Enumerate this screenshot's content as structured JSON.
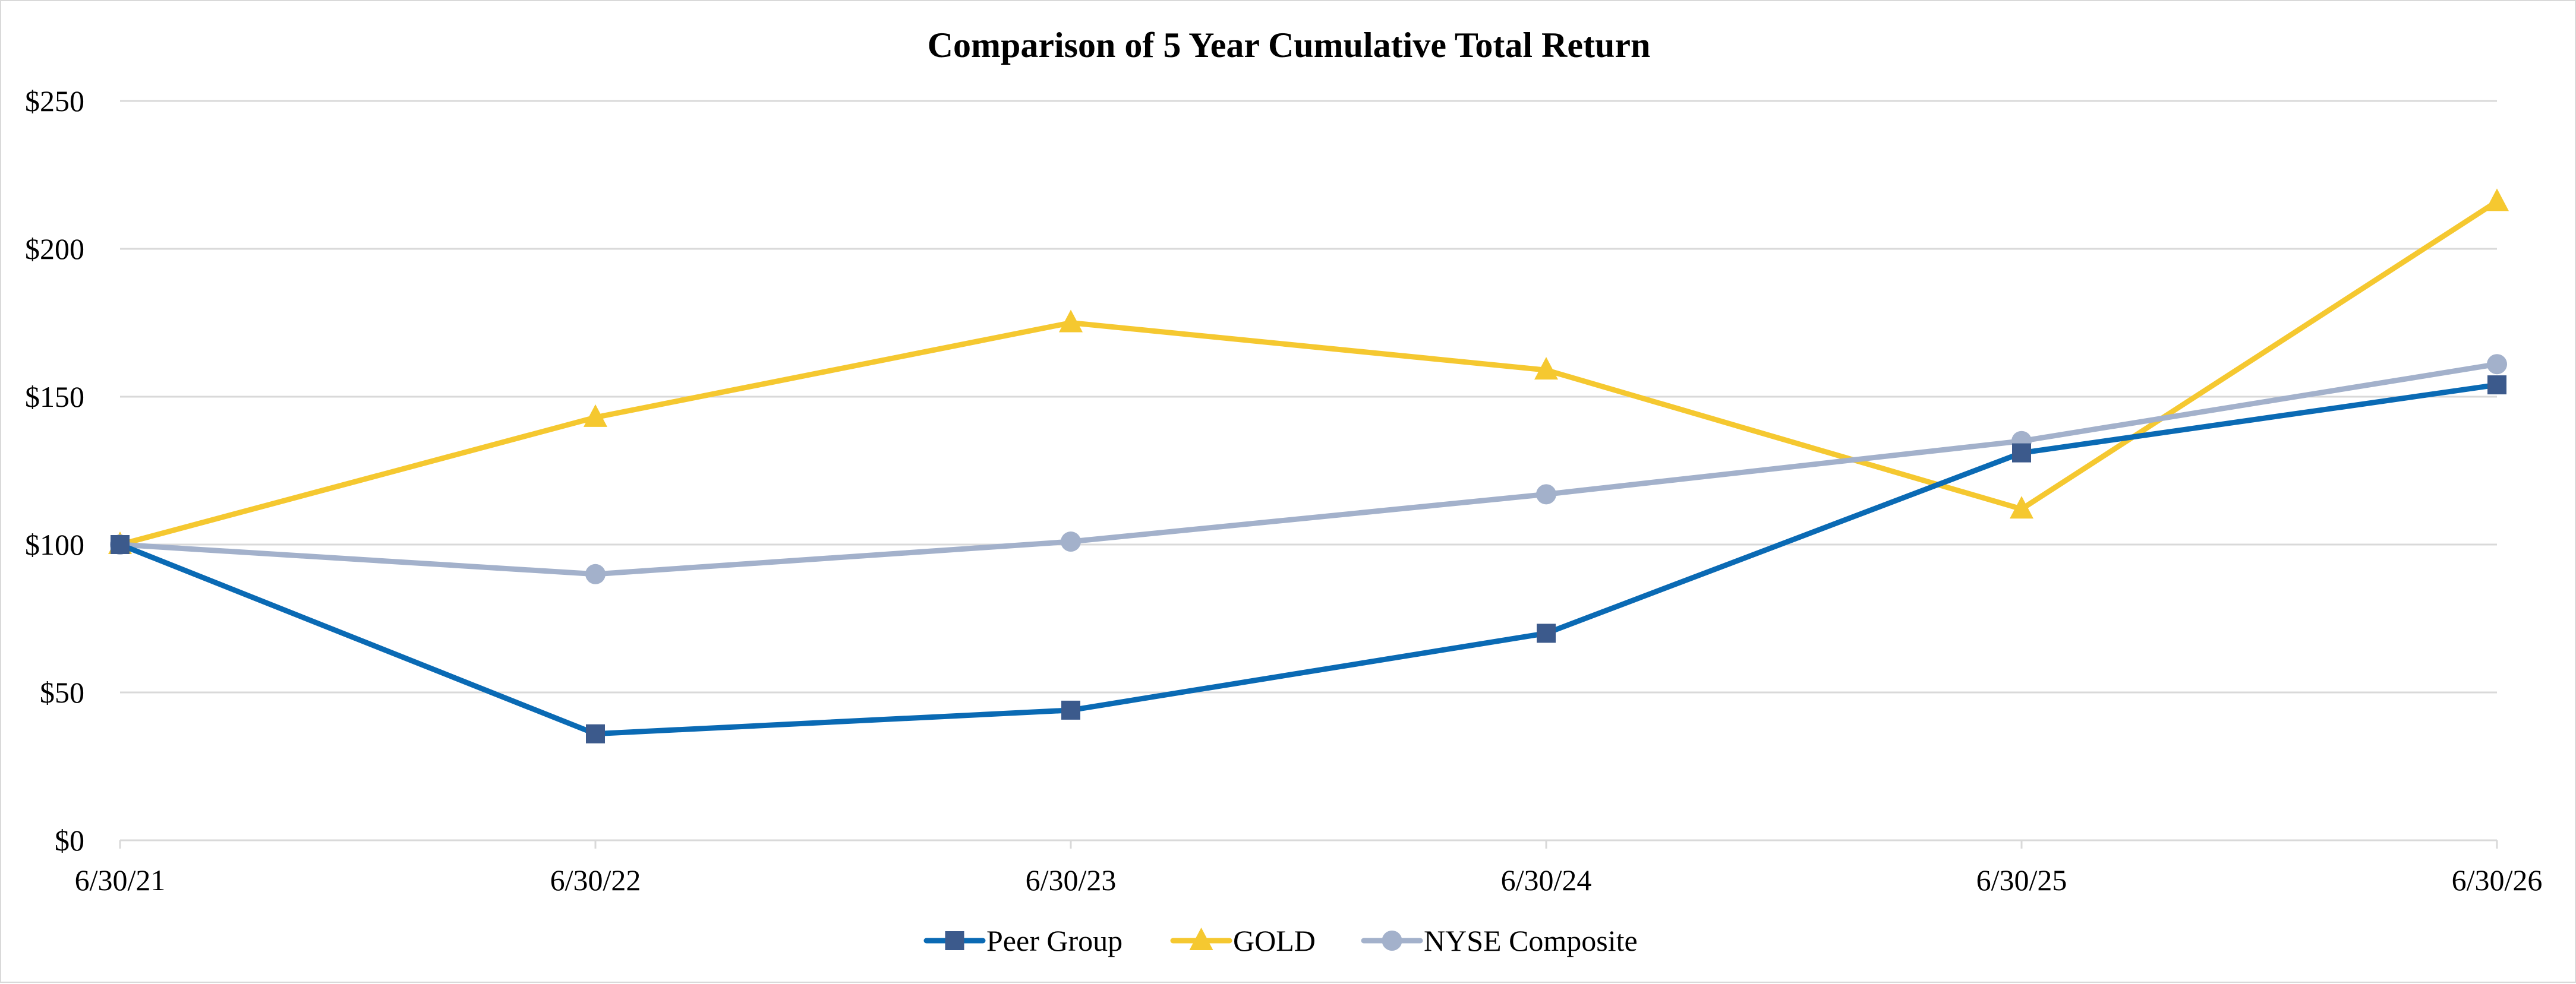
{
  "chart_data": {
    "type": "line",
    "title": "Comparison of 5 Year Cumulative Total Return",
    "xlabel": "",
    "ylabel": "",
    "categories": [
      "6/30/21",
      "6/30/22",
      "6/30/23",
      "6/30/24",
      "6/30/25",
      "6/30/26"
    ],
    "ylim": [
      0,
      250
    ],
    "y_ticks": [
      0,
      50,
      100,
      150,
      200,
      250
    ],
    "y_tick_labels": [
      "$0",
      "$50",
      "$100",
      "$150",
      "$200",
      "$250"
    ],
    "grid": true,
    "legend_position": "bottom",
    "series": [
      {
        "name": "Peer Group",
        "values": [
          100,
          36,
          44,
          70,
          131,
          154
        ],
        "color": "#0a6ab4",
        "marker_color": "#3c5a8c",
        "marker": "square"
      },
      {
        "name": "GOLD",
        "values": [
          100,
          143,
          175,
          159,
          112,
          216
        ],
        "color": "#f5c830",
        "marker_color": "#f5c830",
        "marker": "triangle"
      },
      {
        "name": "NYSE Composite",
        "values": [
          100,
          90,
          101,
          117,
          135,
          161
        ],
        "color": "#a3b1cb",
        "marker_color": "#a3b1cb",
        "marker": "circle"
      }
    ]
  }
}
